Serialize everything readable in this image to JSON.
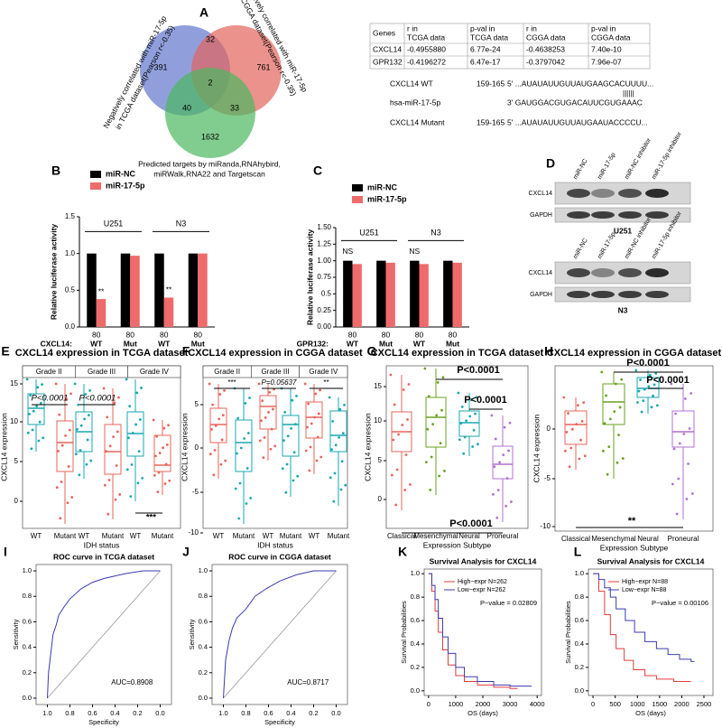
{
  "panel_labels": [
    "A",
    "B",
    "C",
    "D",
    "E",
    "F",
    "G",
    "H",
    "I",
    "J",
    "K",
    "L"
  ],
  "venn": {
    "left_label": [
      "Negatively correlated with miR-17-5p",
      "in TCGA dataset(Pearson r<-0.35)"
    ],
    "right_label": [
      "Negatively correlated with miR-17-5p",
      "in CGGA dataset(Pearson r<-0.35)"
    ],
    "bottom_label": [
      "Predicted targets by miRanda,RNAhybird,",
      "miRWalk,RNA22 and Targetscan"
    ],
    "counts": [
      391,
      32,
      761,
      2,
      40,
      33,
      1632
    ]
  },
  "table": {
    "header": [
      [
        "Genes"
      ],
      [
        "r in",
        "TCGA data"
      ],
      [
        "p-val in",
        "TCGA data"
      ],
      [
        "r in",
        "CGGA data"
      ],
      [
        "p-val in",
        "CGGA data"
      ]
    ],
    "rows": [
      [
        "CXCL14",
        "-0.4955880",
        "6.77e-24",
        "-0.4638253",
        "7.40e-10"
      ],
      [
        "GPR132",
        "-0.4196272",
        "6.47e-17",
        "-0.3797042",
        "7.96e-07"
      ]
    ]
  },
  "sequence": {
    "wt_name": "CXCL14 WT",
    "wt_pos": "159-165",
    "wt_seq": "5' ...AUAUAUUGUUAUGAAGCACUUUU...",
    "pairing": "||||||",
    "mir_name": "hsa-miR-17-5p",
    "mir_seq": "3'   GAUGGACGUGACAUUCGUGAAAC",
    "mut_name": "CXCL14 Mutant",
    "mut_pos": "159-165",
    "mut_seq": "5' ...AUAUAUUGUUAUGAAUACCCCU..."
  },
  "luciferase": [
    {
      "series": [
        {
          "name": "miR-NC",
          "color": "#000000"
        },
        {
          "name": "miR-17-5p",
          "color": "#ef6b6b"
        }
      ],
      "ylabel": "Relative luciferase activity",
      "gene": "CXCL14:",
      "groups": [
        "U251",
        "N3"
      ],
      "x_labels": [
        [
          "80",
          "WT"
        ],
        [
          "80",
          "Mut"
        ],
        [
          "80",
          "WT"
        ],
        [
          "80",
          "Mut"
        ]
      ],
      "values": [
        1.0,
        0.38,
        1.0,
        0.97,
        1.0,
        0.4,
        1.0,
        1.0
      ],
      "pair_annotations": [
        "**",
        null,
        "**",
        null
      ],
      "ylim": [
        0,
        1.5
      ],
      "yticks": [
        {
          "value": 0,
          "label": "0.0"
        },
        0.5,
        {
          "value": 1,
          "label": "1.0"
        },
        1.5
      ]
    },
    {
      "series": [
        {
          "name": "miR-NC",
          "color": "#000000"
        },
        {
          "name": "miR-17-5p",
          "color": "#ef6b6b"
        }
      ],
      "ylabel": "Relative luciferase activity",
      "gene": "GPR132:",
      "groups": [
        "U251",
        "N3"
      ],
      "x_labels": [
        [
          "80",
          "WT"
        ],
        [
          "80",
          "Mut"
        ],
        [
          "80",
          "WT"
        ],
        [
          "80",
          "Mut"
        ]
      ],
      "values": [
        1.0,
        0.95,
        1.0,
        0.97,
        1.0,
        0.95,
        1.0,
        0.97
      ],
      "pair_annotations": [
        "NS",
        null,
        "NS",
        null
      ],
      "ylim": [
        0,
        1.5
      ],
      "yticks": [
        {
          "value": 0,
          "label": "0.00"
        },
        0.25,
        0.5,
        0.75,
        {
          "value": 1,
          "label": "1.00"
        },
        1.25,
        {
          "value": 1.5,
          "label": "1.50"
        }
      ]
    }
  ],
  "western": {
    "lanes": [
      "miR-NC",
      "miR-17-5p",
      "miR-NC inhibitor",
      "miR-17-5p inhibitor"
    ],
    "proteins": [
      "CXCL14",
      "GAPDH"
    ],
    "cells": [
      "U251",
      "N3"
    ]
  },
  "boxplots": [
    {
      "title": "CXCL14 expression in TCGA dataset",
      "ylabel": "CXCL14 expression",
      "strips": [
        "Grade II",
        "Grade III",
        "Grade IV"
      ],
      "x_labels": [
        "WT",
        "Mutant",
        "WT",
        "Mutant",
        "WT",
        "Mutant"
      ],
      "xlabel": "IDH status",
      "annotations": [
        "P<0.0001",
        "P<0.0001",
        "***"
      ],
      "yticks": [
        15,
        10,
        5,
        0
      ]
    },
    {
      "title": "CXCL14 expression in CGGA dataset",
      "ylabel": "CXCL14 expression",
      "strips": [
        "Grade II",
        "Grade III",
        "Grade IV"
      ],
      "x_labels": [
        "WT",
        "Mutant",
        "WT",
        "Mutant",
        "WT",
        "Mutant"
      ],
      "xlabel": "IDH status",
      "annotations": [
        "***",
        "P=0.05637",
        "**"
      ],
      "yticks": [
        5,
        0,
        -5,
        -10
      ]
    },
    {
      "title": "CXCL14 expression in TCGA dataset",
      "ylabel": "CXCL14 expression",
      "x_labels": [
        "Classical",
        "Mesenchymal",
        "Neural",
        "Proneural"
      ],
      "xlabel": "Expression Subtype",
      "annotations": [
        "P<0.0001",
        "P<0.0001",
        "P<0.0001"
      ],
      "yticks": [
        15,
        10,
        5,
        0
      ]
    },
    {
      "title": "CXCL14 expression in CGGA dataset",
      "ylabel": "CXCL14 expression",
      "x_labels": [
        "Classical",
        "Mesenchymal",
        "Neural",
        "Proneural"
      ],
      "xlabel": "Expression Subtype",
      "annotations": [
        "P<0.0001",
        "P<0.0001",
        "**"
      ],
      "yticks": [
        0,
        -5,
        -10
      ]
    }
  ],
  "roc": [
    {
      "title": "ROC curve in TCGA dataset",
      "ylabel": "Sensitivity",
      "xlabel": "Specificity",
      "auc": "AUC=0.8908",
      "yticks": [
        {
          "value": 0,
          "label": "0.0"
        },
        0.2,
        0.4,
        0.6,
        0.8,
        {
          "value": 1,
          "label": "1.0"
        }
      ],
      "xticks": [
        {
          "value": 1,
          "label": "1.0"
        },
        0.8,
        0.6,
        0.4,
        0.2,
        {
          "value": 0,
          "label": "0.0"
        }
      ]
    },
    {
      "title": "ROC curve in CGGA dataset",
      "ylabel": "Sensitivity",
      "xlabel": "Specificity",
      "auc": "AUC=0.8717",
      "yticks": [
        {
          "value": 0,
          "label": "0.0"
        },
        0.2,
        0.4,
        0.6,
        0.8,
        {
          "value": 1,
          "label": "1.0"
        }
      ],
      "xticks": [
        {
          "value": 1,
          "label": "1.0"
        },
        0.8,
        0.6,
        0.4,
        0.2,
        {
          "value": 0,
          "label": "0.0"
        }
      ]
    }
  ],
  "survival": [
    {
      "title": "Survival Analysis for CXCL14",
      "legend": [
        "High−expr N=262",
        "Low−expr N=262"
      ],
      "pvalue": "P−value = 0.02809",
      "ylabel": "Survival Probabilities",
      "xlabel": "OS (days)",
      "yticks": [
        {
          "value": 0,
          "label": "0.0"
        },
        0.2,
        0.4,
        0.6,
        0.8,
        {
          "value": 1,
          "label": "1.0"
        }
      ],
      "xticks": [
        0,
        1000,
        2000,
        3000,
        4000
      ],
      "xlim": [
        0,
        4000
      ]
    },
    {
      "title": "Survival Analysis for CXCL14",
      "legend": [
        "High−expr N=88",
        "Low−expr N=88"
      ],
      "pvalue": "P−value = 0.00106",
      "ylabel": "Survival Probabilities",
      "xlabel": "OS (days)",
      "yticks": [
        {
          "value": 0,
          "label": "0.0"
        },
        0.2,
        0.4,
        0.6,
        0.8,
        {
          "value": 1,
          "label": "1.0"
        }
      ],
      "xticks": [
        0,
        500,
        1000,
        1500,
        2000,
        2500
      ],
      "xlim": [
        0,
        2600
      ]
    }
  ]
}
